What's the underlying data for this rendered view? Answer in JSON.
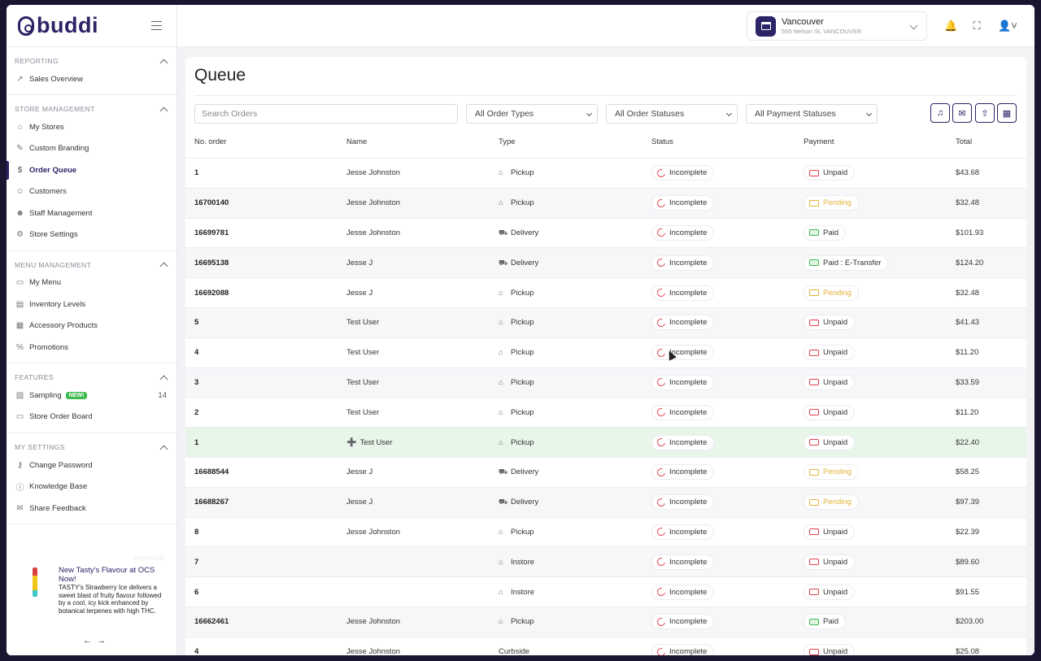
{
  "brand": {
    "name": "buddi"
  },
  "sidebar": {
    "sections": [
      {
        "title": "REPORTING",
        "items": [
          {
            "label": "Sales Overview",
            "icon": "chart-icon"
          }
        ]
      },
      {
        "title": "STORE MANAGEMENT",
        "items": [
          {
            "label": "My Stores",
            "icon": "store-icon"
          },
          {
            "label": "Custom Branding",
            "icon": "brush-icon"
          },
          {
            "label": "Order Queue",
            "icon": "dollar-icon",
            "active": true
          },
          {
            "label": "Customers",
            "icon": "user-icon"
          },
          {
            "label": "Staff Management",
            "icon": "users-icon"
          },
          {
            "label": "Store Settings",
            "icon": "gear-icon"
          }
        ]
      },
      {
        "title": "MENU MANAGEMENT",
        "items": [
          {
            "label": "My Menu",
            "icon": "menu-icon"
          },
          {
            "label": "Inventory Levels",
            "icon": "inventory-icon"
          },
          {
            "label": "Accessory Products",
            "icon": "accessory-icon"
          },
          {
            "label": "Promotions",
            "icon": "percent-icon"
          }
        ]
      },
      {
        "title": "FEATURES",
        "items": [
          {
            "label": "Sampling",
            "icon": "sampling-icon",
            "badge": "NEW!",
            "count": "14"
          },
          {
            "label": "Store Order Board",
            "icon": "monitor-icon"
          }
        ]
      },
      {
        "title": "MY SETTINGS",
        "items": [
          {
            "label": "Change Password",
            "icon": "key-icon"
          },
          {
            "label": "Knowledge Base",
            "icon": "info-icon"
          },
          {
            "label": "Share Feedback",
            "icon": "chat-icon"
          }
        ]
      }
    ]
  },
  "promo": {
    "tag": "SPONSOR",
    "title": "New Tasty's Flavour at OCS Now!",
    "body": "TASTY's Strawberry Ice delivers a sweet blast of fruity flavour followed by a cool, icy kick enhanced by botanical terpenes with high THC.",
    "arrows": "←→"
  },
  "header": {
    "store_name": "Vancouver",
    "store_address": "555 Nelson St, VANCOUVER"
  },
  "queue": {
    "title": "Queue",
    "search_placeholder": "Search Orders",
    "filters": [
      "All Order Types",
      "All Order Statuses",
      "All Payment Statuses"
    ],
    "columns": [
      "No. order",
      "Name",
      "Type",
      "Status",
      "Payment",
      "Total"
    ],
    "rows": [
      {
        "no": "1",
        "name": "Jesse Johnston",
        "type": "Pickup",
        "status": "Incomplete",
        "payment": "Unpaid",
        "total": "$43.68"
      },
      {
        "no": "16700140",
        "name": "Jesse Johnston",
        "type": "Pickup",
        "status": "Incomplete",
        "payment": "Pending",
        "total": "$32.48"
      },
      {
        "no": "16699781",
        "name": "Jesse Johnston",
        "type": "Delivery",
        "status": "Incomplete",
        "payment": "Paid",
        "total": "$101.93"
      },
      {
        "no": "16695138",
        "name": "Jesse J",
        "type": "Delivery",
        "status": "Incomplete",
        "payment": "Paid : E-Transfer",
        "total": "$124.20"
      },
      {
        "no": "16692088",
        "name": "Jesse J",
        "type": "Pickup",
        "status": "Incomplete",
        "payment": "Pending",
        "total": "$32.48"
      },
      {
        "no": "5",
        "name": "Test User",
        "type": "Pickup",
        "status": "Incomplete",
        "payment": "Unpaid",
        "total": "$41.43"
      },
      {
        "no": "4",
        "name": "Test User",
        "type": "Pickup",
        "status": "Incomplete",
        "payment": "Unpaid",
        "total": "$11.20"
      },
      {
        "no": "3",
        "name": "Test User",
        "type": "Pickup",
        "status": "Incomplete",
        "payment": "Unpaid",
        "total": "$33.59"
      },
      {
        "no": "2",
        "name": "Test User",
        "type": "Pickup",
        "status": "Incomplete",
        "payment": "Unpaid",
        "total": "$11.20"
      },
      {
        "no": "1",
        "name": "Test User",
        "type": "Pickup",
        "status": "Incomplete",
        "payment": "Unpaid",
        "total": "$22.40",
        "guest": true
      },
      {
        "no": "16688544",
        "name": "Jesse J",
        "type": "Delivery",
        "status": "Incomplete",
        "payment": "Pending",
        "total": "$58.25"
      },
      {
        "no": "16688267",
        "name": "Jesse J",
        "type": "Delivery",
        "status": "Incomplete",
        "payment": "Pending",
        "total": "$97.39"
      },
      {
        "no": "8",
        "name": "Jesse Johnston",
        "type": "Pickup",
        "status": "Incomplete",
        "payment": "Unpaid",
        "total": "$22.39"
      },
      {
        "no": "7",
        "name": "",
        "type": "Instore",
        "status": "Incomplete",
        "payment": "Unpaid",
        "total": "$89.60"
      },
      {
        "no": "6",
        "name": "",
        "type": "Instore",
        "status": "Incomplete",
        "payment": "Unpaid",
        "total": "$91.55"
      },
      {
        "no": "16662461",
        "name": "Jesse Johnston",
        "type": "Pickup",
        "status": "Incomplete",
        "payment": "Paid",
        "total": "$203.00"
      },
      {
        "no": "4",
        "name": "Jesse Johnston",
        "type": "Curbside",
        "status": "Incomplete",
        "payment": "Unpaid",
        "total": "$25.08"
      }
    ]
  },
  "colors": {
    "brand": "#2b2466",
    "danger": "#e0424e",
    "success": "#3fb950",
    "warning": "#e3b23c"
  }
}
